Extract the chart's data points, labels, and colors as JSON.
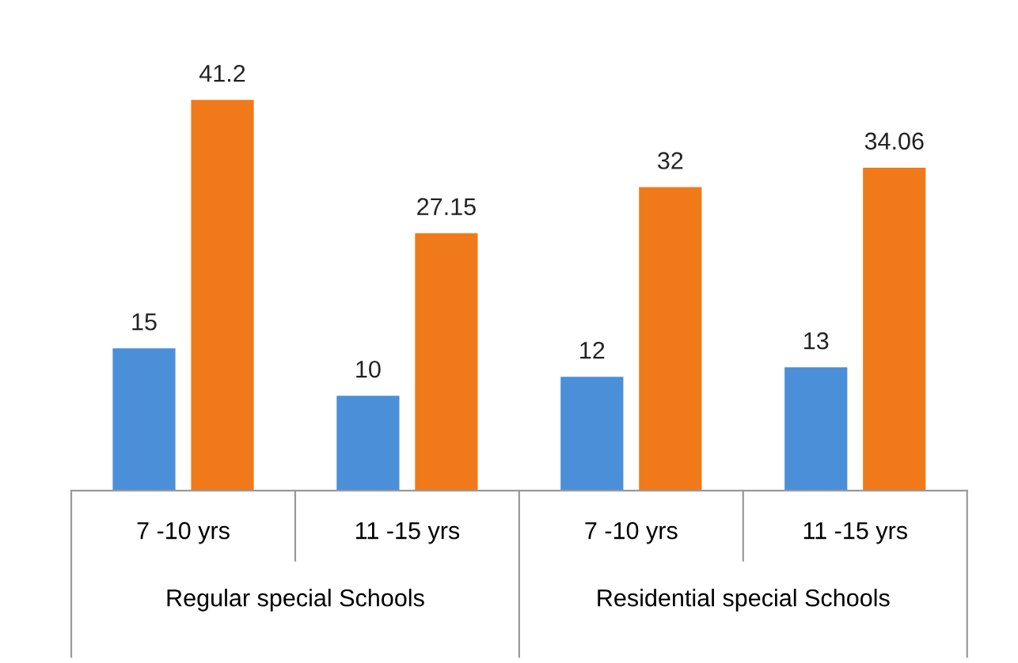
{
  "chart_data": {
    "type": "bar",
    "categories": [
      "7 -10 yrs",
      "11 -15 yrs",
      "7 -10 yrs",
      "11 -15 yrs"
    ],
    "series": [
      {
        "color": "#4a8fd8",
        "values": [
          15,
          10,
          12,
          13
        ]
      },
      {
        "color": "#f07a1a",
        "values": [
          41.2,
          27.15,
          32,
          34.06
        ]
      }
    ],
    "data_labels": true,
    "tick_labels": "x",
    "grid": false,
    "legend": false,
    "annotations": [
      "Regular special Schools",
      "Residential special Schools"
    ]
  }
}
